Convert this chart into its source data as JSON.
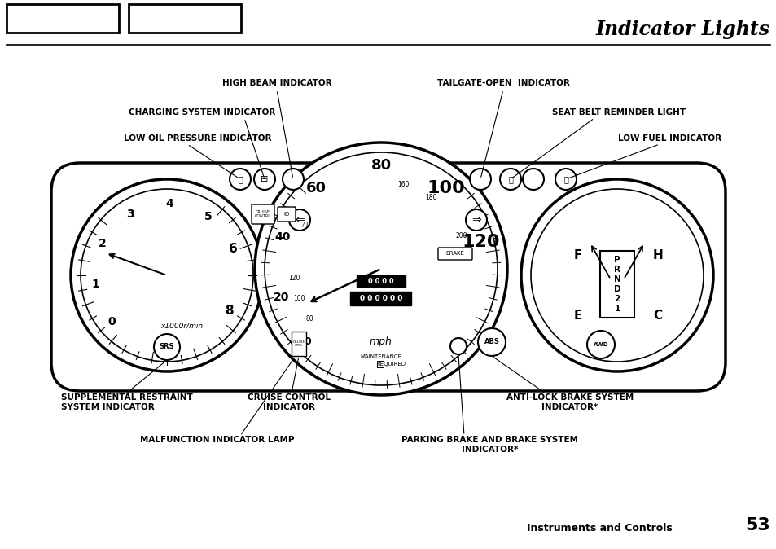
{
  "title": "Indicator Lights",
  "page_footer": "Instruments and Controls",
  "page_number": "53",
  "bg_color": "#ffffff",
  "labels": {
    "high_beam": "HIGH BEAM INDICATOR",
    "tailgate": "TAILGATE-OPEN  INDICATOR",
    "charging": "CHARGING SYSTEM INDICATOR",
    "seat_belt": "SEAT BELT REMINDER LIGHT",
    "low_oil": "LOW OIL PRESSURE INDICATOR",
    "low_fuel": "LOW FUEL INDICATOR",
    "srs_line1": "SUPPLEMENTAL RESTRAINT",
    "srs_line2": "SYSTEM INDICATOR",
    "cruise_line1": "CRUISE CONTROL",
    "cruise_line2": "INDICATOR",
    "abs_line1": "ANTI-LOCK BRAKE SYSTEM",
    "abs_line2": "INDICATOR*",
    "malfunction": "MALFUNCTION INDICATOR LAMP",
    "parking_line1": "PARKING BRAKE AND BRAKE SYSTEM",
    "parking_line2": "INDICATOR*"
  }
}
